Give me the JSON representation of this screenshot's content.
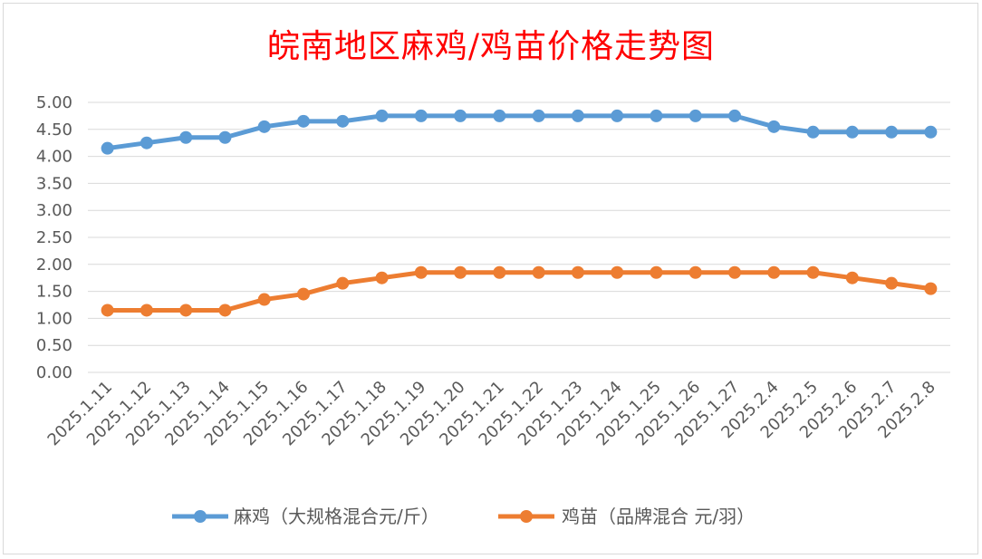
{
  "chart_data": {
    "type": "line",
    "title": "皖南地区麻鸡/鸡苗价格走势图",
    "categories": [
      "2025.1.11",
      "2025.1.12",
      "2025.1.13",
      "2025.1.14",
      "2025.1.15",
      "2025.1.16",
      "2025.1.17",
      "2025.1.18",
      "2025.1.19",
      "2025.1.20",
      "2025.1.21",
      "2025.1.22",
      "2025.1.23",
      "2025.1.24",
      "2025.1.25",
      "2025.1.26",
      "2025.1.27",
      "2025.2.4",
      "2025.2.5",
      "2025.2.6",
      "2025.2.7",
      "2025.2.8"
    ],
    "series": [
      {
        "name": "麻鸡（大规格混合元/斤）",
        "color": "#5b9bd5",
        "values": [
          4.15,
          4.25,
          4.35,
          4.35,
          4.55,
          4.65,
          4.65,
          4.75,
          4.75,
          4.75,
          4.75,
          4.75,
          4.75,
          4.75,
          4.75,
          4.75,
          4.75,
          4.55,
          4.45,
          4.45,
          4.45,
          4.45
        ]
      },
      {
        "name": "鸡苗（品牌混合 元/羽）",
        "color": "#ed7d31",
        "values": [
          1.15,
          1.15,
          1.15,
          1.15,
          1.35,
          1.45,
          1.65,
          1.75,
          1.85,
          1.85,
          1.85,
          1.85,
          1.85,
          1.85,
          1.85,
          1.85,
          1.85,
          1.85,
          1.85,
          1.75,
          1.65,
          1.55
        ]
      }
    ],
    "ylim": [
      0,
      5
    ],
    "yticks": [
      "0.00",
      "0.50",
      "1.00",
      "1.50",
      "2.00",
      "2.50",
      "3.00",
      "3.50",
      "4.00",
      "4.50",
      "5.00"
    ],
    "grid": true,
    "legend_position": "bottom",
    "title_color": "#ff0000"
  }
}
